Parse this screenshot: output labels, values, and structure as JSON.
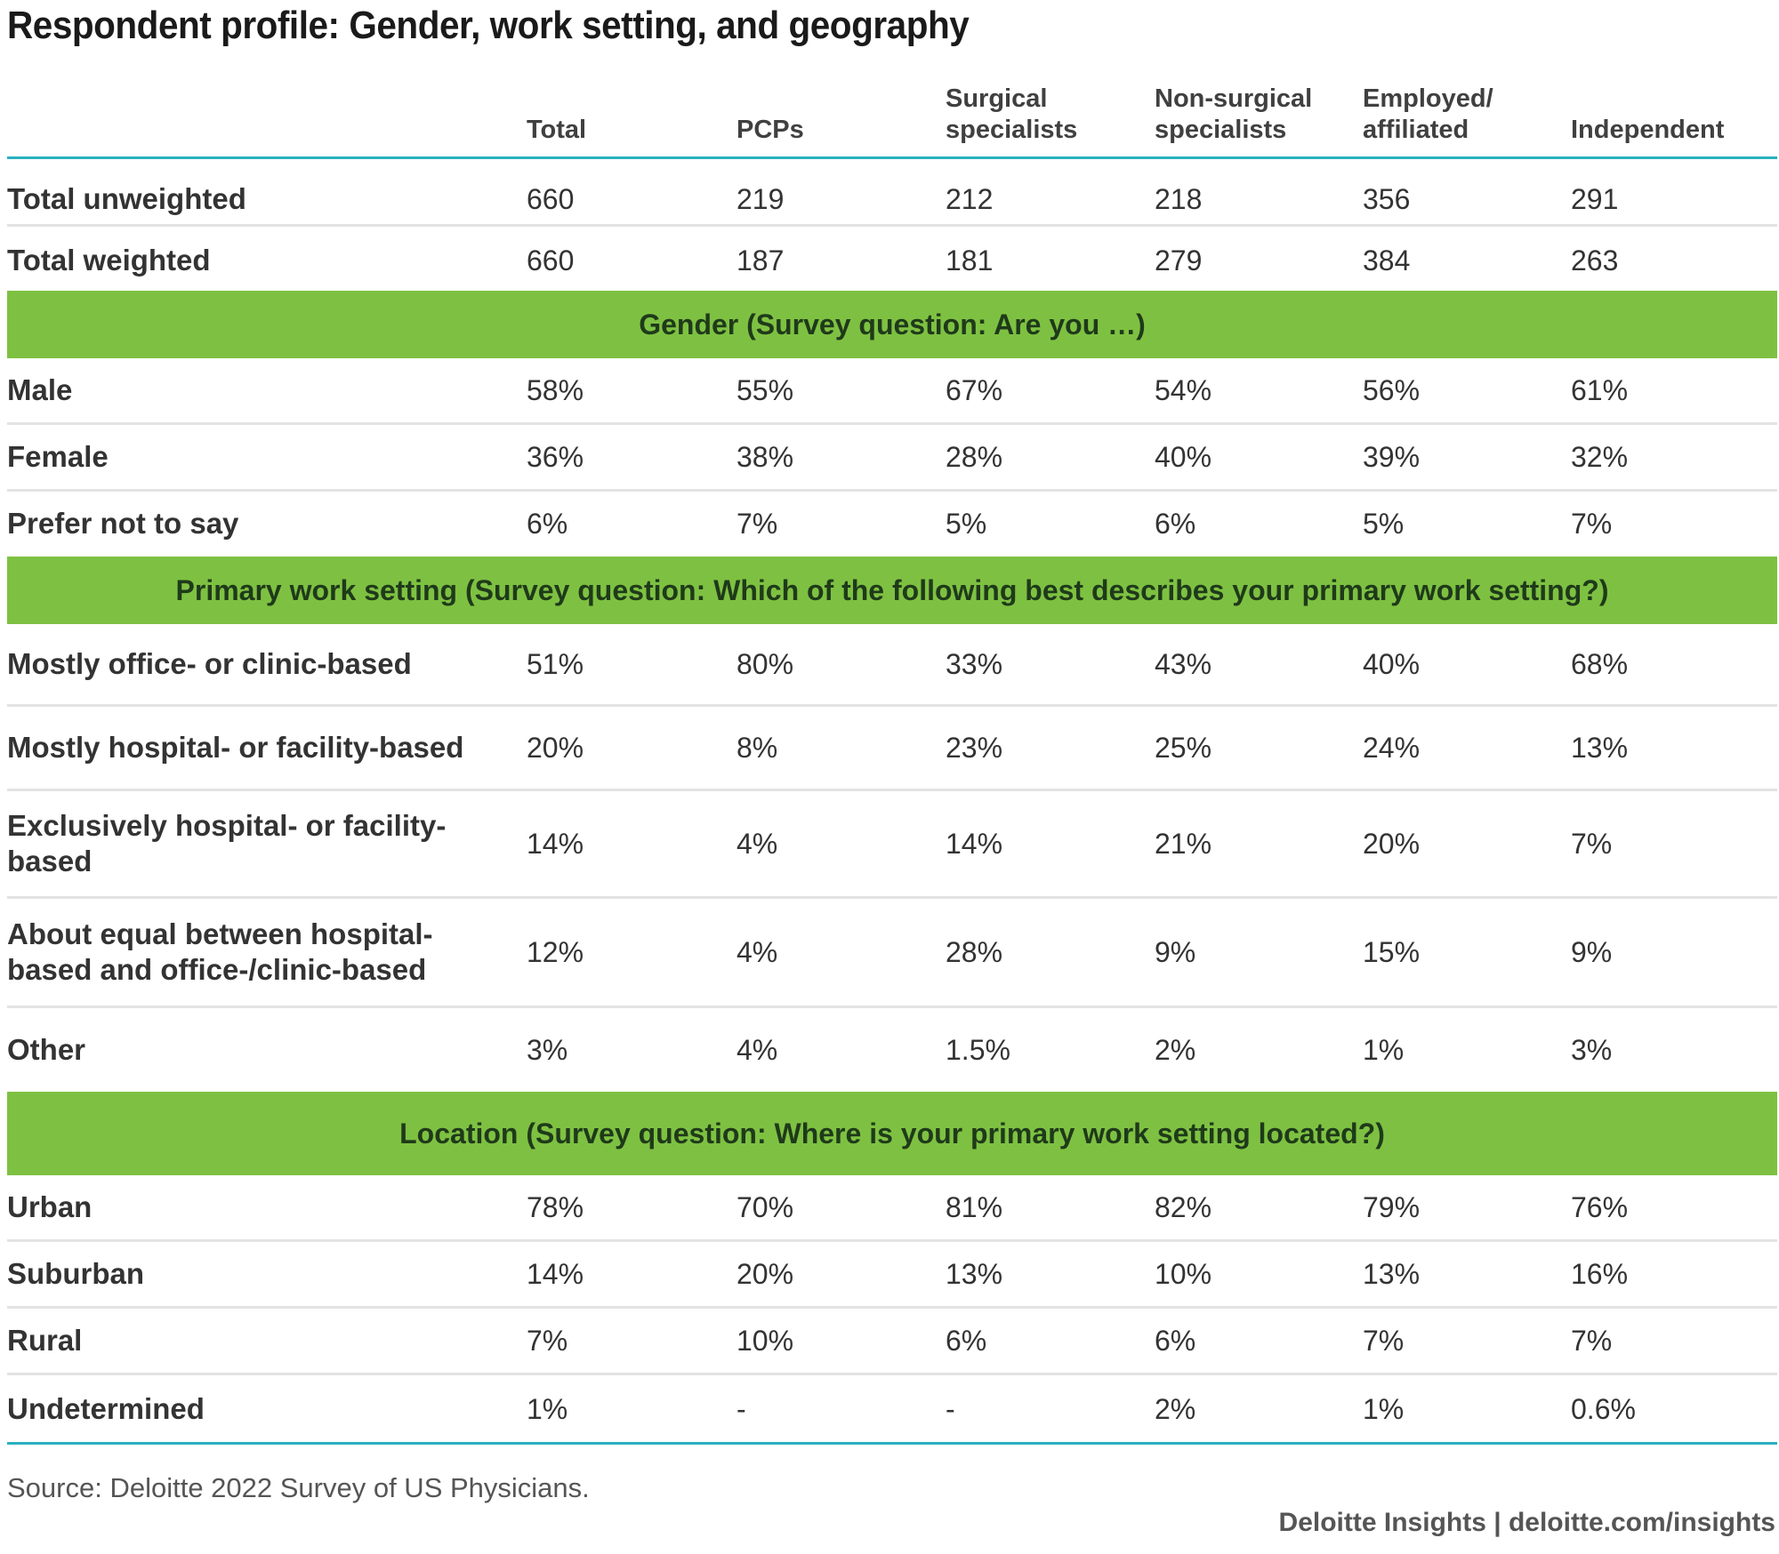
{
  "chart_data": {
    "type": "table",
    "title": "Respondent profile: Gender, work setting, and geography",
    "columns": [
      "Total",
      "PCPs",
      "Surgical specialists",
      "Non-surgical specialists",
      "Employed/ affiliated",
      "Independent"
    ],
    "header_lines": [
      [
        "",
        "Total"
      ],
      [
        "",
        "PCPs"
      ],
      [
        "Surgical",
        "specialists"
      ],
      [
        "Non-surgical",
        "specialists"
      ],
      [
        "Employed/",
        "affiliated"
      ],
      [
        "",
        "Independent"
      ]
    ],
    "totals": [
      {
        "label": "Total unweighted",
        "values": [
          "660",
          "219",
          "212",
          "218",
          "356",
          "291"
        ]
      },
      {
        "label": "Total weighted",
        "values": [
          "660",
          "187",
          "181",
          "279",
          "384",
          "263"
        ]
      }
    ],
    "sections": [
      {
        "title": "Gender (Survey question: Are you …)",
        "rows": [
          {
            "label": "Male",
            "values": [
              "58%",
              "55%",
              "67%",
              "54%",
              "56%",
              "61%"
            ]
          },
          {
            "label": "Female",
            "values": [
              "36%",
              "38%",
              "28%",
              "40%",
              "39%",
              "32%"
            ]
          },
          {
            "label": "Prefer not to say",
            "values": [
              "6%",
              "7%",
              "5%",
              "6%",
              "5%",
              "7%"
            ]
          }
        ]
      },
      {
        "title": "Primary work setting (Survey question: Which of the following best describes your primary work setting?)",
        "rows": [
          {
            "label": "Mostly office- or clinic-based",
            "values": [
              "51%",
              "80%",
              "33%",
              "43%",
              "40%",
              "68%"
            ]
          },
          {
            "label": "Mostly hospital- or facility-based",
            "values": [
              "20%",
              "8%",
              "23%",
              "25%",
              "24%",
              "13%"
            ]
          },
          {
            "label": "Exclusively hospital- or facility-based",
            "values": [
              "14%",
              "4%",
              "14%",
              "21%",
              "20%",
              "7%"
            ]
          },
          {
            "label": "About equal between hospital-based and office-/clinic-based",
            "values": [
              "12%",
              "4%",
              "28%",
              "9%",
              "15%",
              "9%"
            ]
          },
          {
            "label": "Other",
            "values": [
              "3%",
              "4%",
              "1.5%",
              "2%",
              "1%",
              "3%"
            ]
          }
        ]
      },
      {
        "title": "Location (Survey question: Where is your primary work setting located?)",
        "rows": [
          {
            "label": "Urban",
            "values": [
              "78%",
              "70%",
              "81%",
              "82%",
              "79%",
              "76%"
            ]
          },
          {
            "label": "Suburban",
            "values": [
              "14%",
              "20%",
              "13%",
              "10%",
              "13%",
              "16%"
            ]
          },
          {
            "label": "Rural",
            "values": [
              "7%",
              "10%",
              "6%",
              "6%",
              "7%",
              "7%"
            ]
          },
          {
            "label": "Undetermined",
            "values": [
              "1%",
              "-",
              "-",
              "2%",
              "1%",
              "0.6%"
            ]
          }
        ]
      }
    ],
    "source": "Source: Deloitte 2022 Survey of US Physicians.",
    "footer": "Deloitte Insights | deloitte.com/insights"
  },
  "colors": {
    "band": "#7ec142",
    "rule_teal": "#2bb0c0",
    "rule_grey": "#e3e3e3",
    "text": "#333333"
  }
}
